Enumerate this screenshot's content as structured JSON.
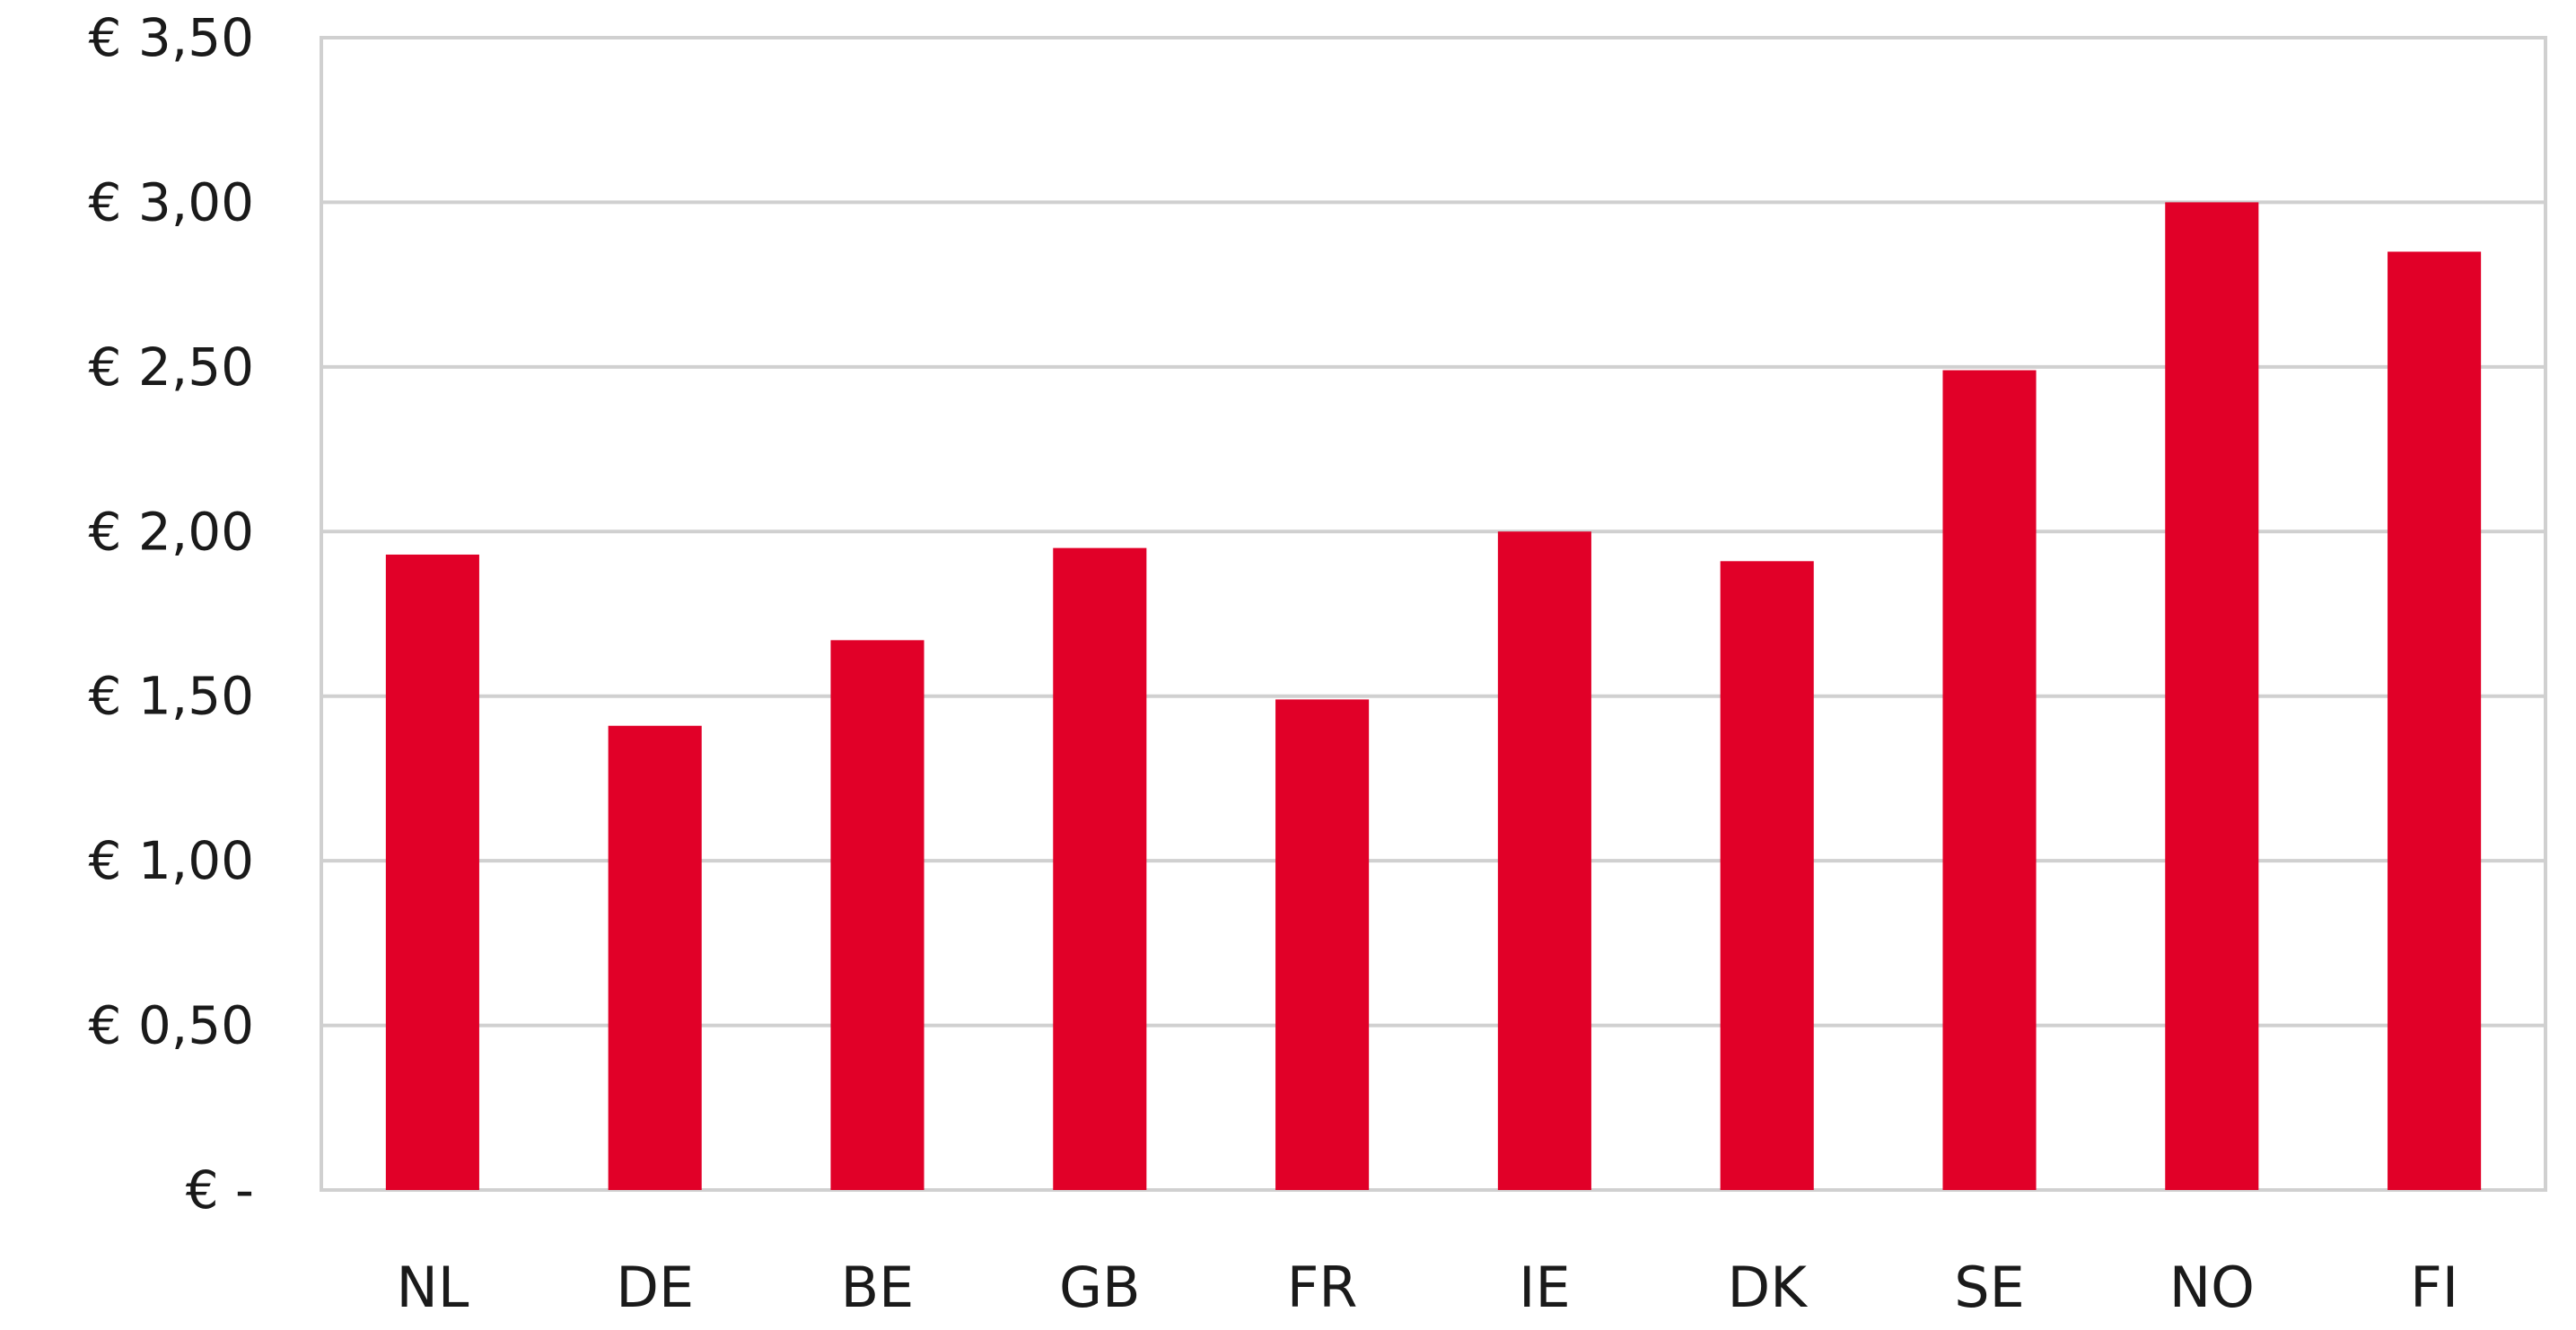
{
  "chart_data": {
    "type": "bar",
    "title": "",
    "xlabel": "",
    "ylabel": "",
    "categories": [
      "NL",
      "DE",
      "BE",
      "GB",
      "FR",
      "IE",
      "DK",
      "SE",
      "NO",
      "FI"
    ],
    "values": [
      1.93,
      1.41,
      1.67,
      1.95,
      1.49,
      2.0,
      1.91,
      2.49,
      3.0,
      2.85
    ],
    "ylim": [
      0,
      3.5
    ],
    "yticks": [
      0,
      0.5,
      1.0,
      1.5,
      2.0,
      2.5,
      3.0,
      3.5
    ],
    "ytick_labels": [
      "€ -",
      "€ 0,50",
      "€ 1,00",
      "€ 1,50",
      "€ 2,00",
      "€ 2,50",
      "€ 3,00",
      "€ 3,50"
    ],
    "grid": true,
    "legend": "none",
    "bar_color": "#e10028",
    "grid_color": "#d0d0d0"
  }
}
